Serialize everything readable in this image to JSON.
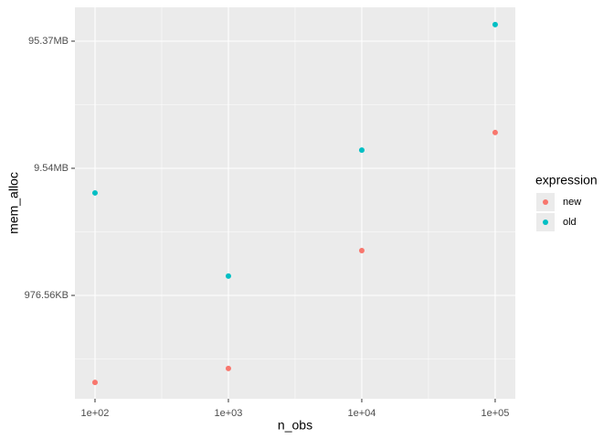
{
  "chart_data": {
    "type": "scatter",
    "x_label": "n_obs",
    "y_label": "mem_alloc",
    "log_x": true,
    "log_y": true,
    "grid": true,
    "legend_title": "expression",
    "legend_position": "right",
    "xlim": [
      70.7,
      141600
    ],
    "ylim": [
      153800,
      184600000
    ],
    "xticks": [
      {
        "value": 100,
        "label": "1e+02"
      },
      {
        "value": 1000,
        "label": "1e+03"
      },
      {
        "value": 10000,
        "label": "1e+04"
      },
      {
        "value": 100000,
        "label": "1e+05"
      }
    ],
    "yticks": [
      {
        "value": 1000000,
        "label": "976.56KB"
      },
      {
        "value": 10000000,
        "label": "9.54MB"
      },
      {
        "value": 100000000,
        "label": "95.37MB"
      }
    ],
    "series": [
      {
        "name": "new",
        "color": "#F8766D",
        "x": [
          100,
          1000,
          10000,
          100000
        ],
        "values": [
          207000,
          266000,
          2250000,
          19100000
        ]
      },
      {
        "name": "old",
        "color": "#00BFC4",
        "x": [
          100,
          1000,
          10000,
          100000
        ],
        "values": [
          6400000,
          1420000,
          13900000,
          135000000
        ]
      }
    ]
  }
}
